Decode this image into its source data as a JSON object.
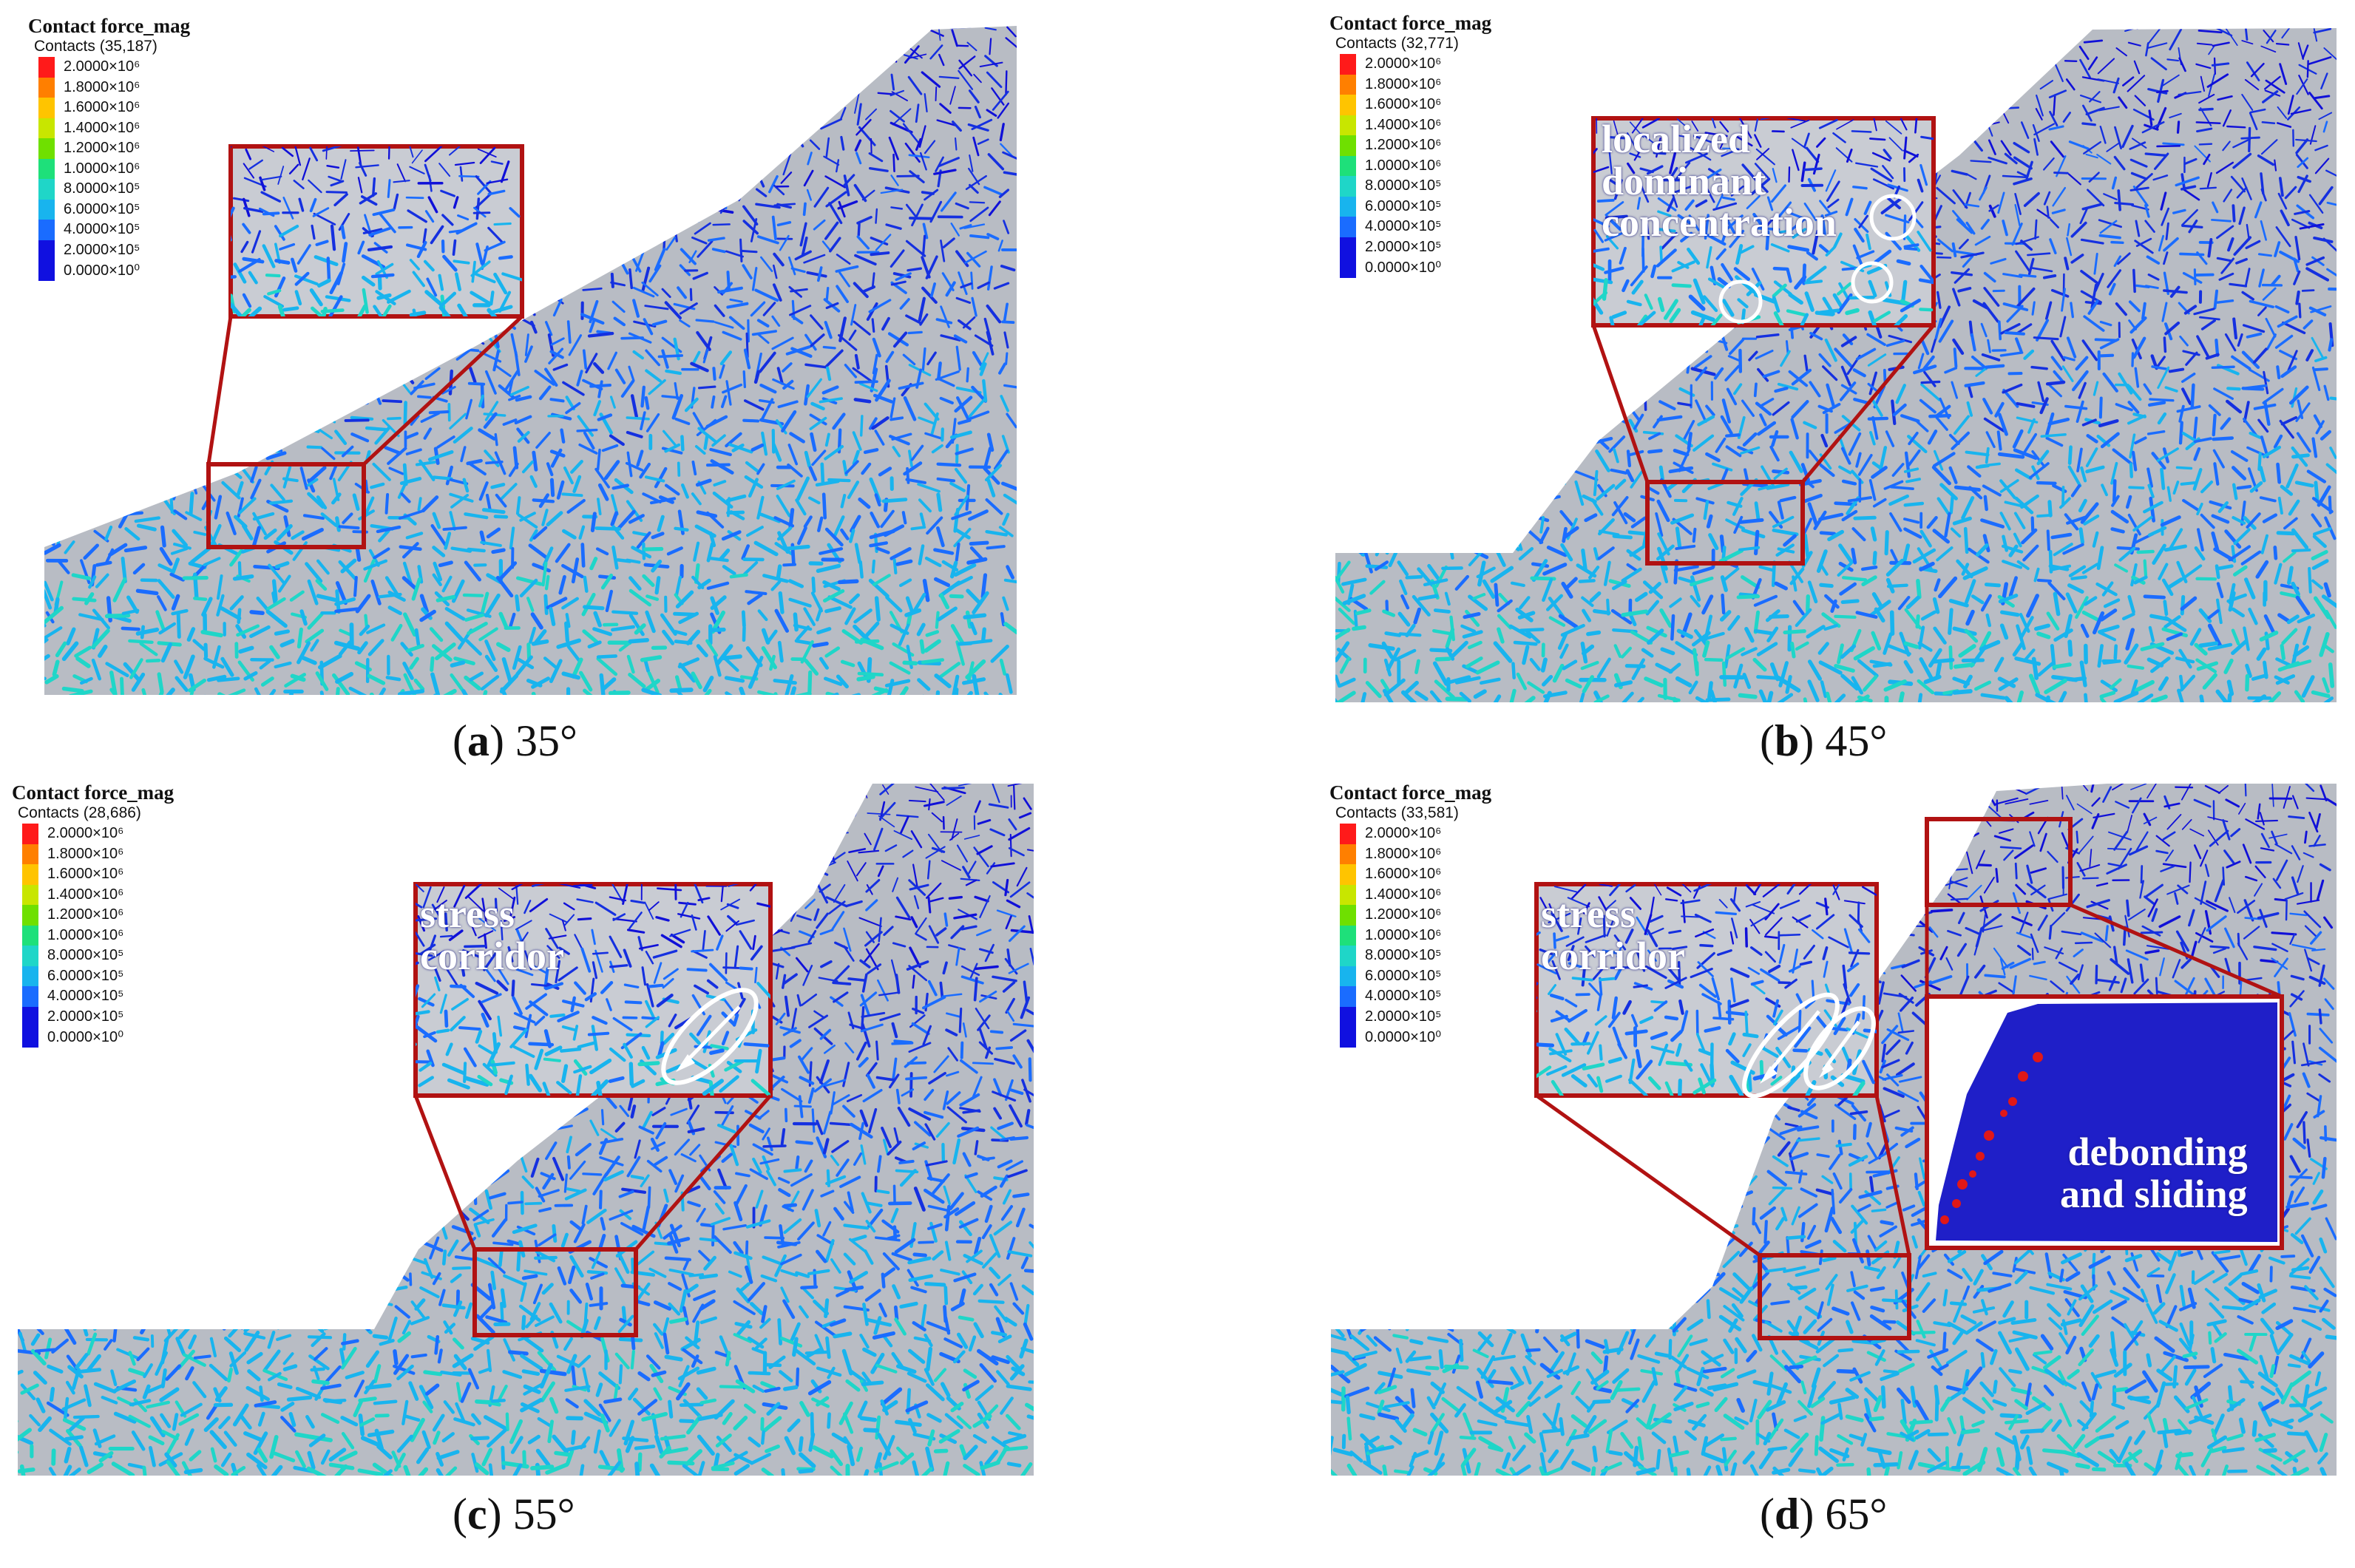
{
  "colors": {
    "scale": [
      "#ff1a1a",
      "#ff7f00",
      "#ffc400",
      "#c8e600",
      "#6fe000",
      "#1ee07a",
      "#1fd6c8",
      "#18b4ee",
      "#1a6cff",
      "#1010e0"
    ],
    "frame": "#b11212",
    "network": "#1020d0",
    "particles": "#b8bcc4"
  },
  "legend": {
    "title": "Contact force_mag",
    "labels": [
      "2.0000×10⁶",
      "1.8000×10⁶",
      "1.6000×10⁶",
      "1.4000×10⁶",
      "1.2000×10⁶",
      "1.0000×10⁶",
      "8.0000×10⁵",
      "6.0000×10⁵",
      "4.0000×10⁵",
      "2.0000×10⁵",
      "0.0000×10⁰"
    ]
  },
  "panels": [
    {
      "id": "a",
      "letter": "a",
      "angle": "35°",
      "contacts": "Contacts (35,187)",
      "annotations": []
    },
    {
      "id": "b",
      "letter": "b",
      "angle": "45°",
      "contacts": "Contacts (32,771)",
      "annotations": [
        "localized",
        "dominant",
        "concentration"
      ]
    },
    {
      "id": "c",
      "letter": "c",
      "angle": "55°",
      "contacts": "Contacts (28,686)",
      "annotations": [
        "stress",
        "corridor"
      ]
    },
    {
      "id": "d",
      "letter": "d",
      "angle": "65°",
      "contacts": "Contacts (33,581)",
      "annotations": [
        "stress",
        "corridor",
        "debonding",
        "and sliding"
      ]
    }
  ]
}
